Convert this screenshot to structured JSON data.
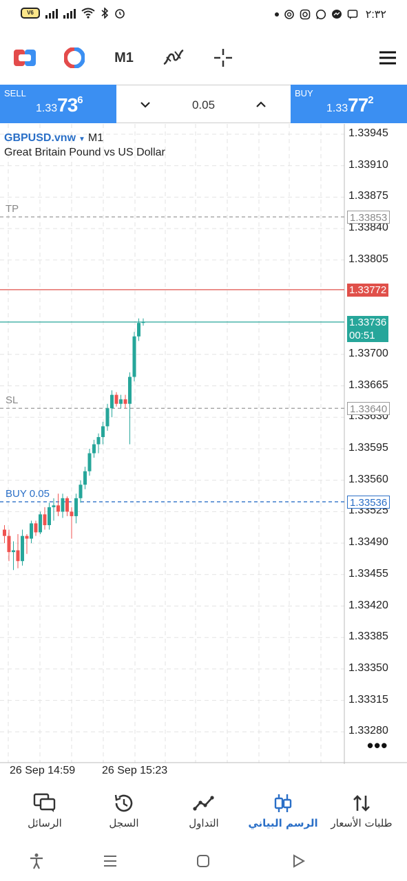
{
  "status_bar": {
    "battery_text": "V6",
    "time": "٢:٣٢"
  },
  "toolbar": {
    "timeframe": "M1"
  },
  "trade_panel": {
    "sell": {
      "label": "SELL",
      "price_main": "1.33",
      "price_big": "73",
      "price_sup": "6"
    },
    "buy": {
      "label": "BUY",
      "price_main": "1.33",
      "price_big": "77",
      "price_sup": "2"
    },
    "volume": "0.05"
  },
  "chart": {
    "symbol": "GBPUSD.vnw",
    "timeframe": "M1",
    "description": "Great Britain Pound vs US Dollar",
    "price_ticks": [
      "1.33945",
      "1.33910",
      "1.33875",
      "1.33840",
      "1.33805",
      "1.33700",
      "1.33665",
      "1.33630",
      "1.33595",
      "1.33560",
      "1.33525",
      "1.33490",
      "1.33455",
      "1.33420",
      "1.33385",
      "1.33350",
      "1.33315",
      "1.33280"
    ],
    "tp": {
      "label": "TP",
      "value": "1.33853"
    },
    "sl": {
      "label": "SL",
      "value": "1.33640"
    },
    "position": {
      "label": "BUY 0.05",
      "value": "1.33536"
    },
    "ask_value": "1.33772",
    "bid_value": "1.33736",
    "countdown": "00:51",
    "time_labels": [
      "26 Sep 14:59",
      "26 Sep 15:23"
    ],
    "colors": {
      "up": "#26a69a",
      "down": "#ef5350",
      "ask_line": "#e0504a",
      "bid_line": "#26a69a",
      "position_line": "#2a6fc7",
      "tp_sl_line": "#999999"
    }
  },
  "chart_data": {
    "type": "candlestick",
    "symbol": "GBPUSD.vnw",
    "timeframe": "M1",
    "y_ticks": [
      1.33945,
      1.3391,
      1.33875,
      1.3384,
      1.33805,
      1.337,
      1.33665,
      1.3363,
      1.33595,
      1.3356,
      1.33525,
      1.3349,
      1.33455,
      1.3342,
      1.33385,
      1.3335,
      1.33315,
      1.3328
    ],
    "ylim": [
      1.33265,
      1.3396
    ],
    "candles": [
      {
        "o": 1.33505,
        "h": 1.3351,
        "l": 1.3349,
        "c": 1.33498
      },
      {
        "o": 1.33498,
        "h": 1.33505,
        "l": 1.3347,
        "c": 1.3348
      },
      {
        "o": 1.3348,
        "h": 1.33492,
        "l": 1.3346,
        "c": 1.33482
      },
      {
        "o": 1.33482,
        "h": 1.335,
        "l": 1.33462,
        "c": 1.3347
      },
      {
        "o": 1.3347,
        "h": 1.33505,
        "l": 1.33465,
        "c": 1.33498
      },
      {
        "o": 1.33498,
        "h": 1.335,
        "l": 1.33478,
        "c": 1.33495
      },
      {
        "o": 1.33495,
        "h": 1.33515,
        "l": 1.3349,
        "c": 1.33512
      },
      {
        "o": 1.33512,
        "h": 1.33515,
        "l": 1.33498,
        "c": 1.33502
      },
      {
        "o": 1.33502,
        "h": 1.33525,
        "l": 1.335,
        "c": 1.33522
      },
      {
        "o": 1.33522,
        "h": 1.3353,
        "l": 1.33505,
        "c": 1.3351
      },
      {
        "o": 1.3351,
        "h": 1.33535,
        "l": 1.33505,
        "c": 1.3353
      },
      {
        "o": 1.3353,
        "h": 1.3354,
        "l": 1.33515,
        "c": 1.33532
      },
      {
        "o": 1.33532,
        "h": 1.33545,
        "l": 1.3352,
        "c": 1.33525
      },
      {
        "o": 1.33525,
        "h": 1.33545,
        "l": 1.33518,
        "c": 1.3354
      },
      {
        "o": 1.3354,
        "h": 1.33542,
        "l": 1.3352,
        "c": 1.33525
      },
      {
        "o": 1.33525,
        "h": 1.3353,
        "l": 1.33495,
        "c": 1.3352
      },
      {
        "o": 1.3352,
        "h": 1.33545,
        "l": 1.33512,
        "c": 1.3354
      },
      {
        "o": 1.3354,
        "h": 1.3356,
        "l": 1.33535,
        "c": 1.33555
      },
      {
        "o": 1.33555,
        "h": 1.33575,
        "l": 1.3355,
        "c": 1.3357
      },
      {
        "o": 1.3357,
        "h": 1.33595,
        "l": 1.33565,
        "c": 1.3359
      },
      {
        "o": 1.3359,
        "h": 1.33605,
        "l": 1.33585,
        "c": 1.336
      },
      {
        "o": 1.336,
        "h": 1.33612,
        "l": 1.3359,
        "c": 1.33608
      },
      {
        "o": 1.33608,
        "h": 1.33625,
        "l": 1.336,
        "c": 1.3362
      },
      {
        "o": 1.3362,
        "h": 1.33645,
        "l": 1.33615,
        "c": 1.3364
      },
      {
        "o": 1.3364,
        "h": 1.3366,
        "l": 1.3363,
        "c": 1.33655
      },
      {
        "o": 1.33655,
        "h": 1.33658,
        "l": 1.33642,
        "c": 1.33645
      },
      {
        "o": 1.33645,
        "h": 1.33655,
        "l": 1.3364,
        "c": 1.3365
      },
      {
        "o": 1.3365,
        "h": 1.33655,
        "l": 1.3364,
        "c": 1.33645
      },
      {
        "o": 1.33645,
        "h": 1.3368,
        "l": 1.336,
        "c": 1.33675
      },
      {
        "o": 1.33675,
        "h": 1.33725,
        "l": 1.3367,
        "c": 1.3372
      },
      {
        "o": 1.3372,
        "h": 1.3374,
        "l": 1.33715,
        "c": 1.33735
      },
      {
        "o": 1.33735,
        "h": 1.3374,
        "l": 1.33732,
        "c": 1.33736
      }
    ],
    "horizontal_lines": [
      {
        "name": "TP",
        "value": 1.33853
      },
      {
        "name": "SL",
        "value": 1.3364
      },
      {
        "name": "BUY 0.05",
        "value": 1.33536
      },
      {
        "name": "Ask",
        "value": 1.33772
      },
      {
        "name": "Bid",
        "value": 1.33736
      }
    ],
    "x_labels": [
      "26 Sep 14:59",
      "26 Sep 15:23"
    ],
    "grid": true
  },
  "bottom_nav": {
    "items": [
      {
        "label": "الرسائل"
      },
      {
        "label": "السجل"
      },
      {
        "label": "التداول"
      },
      {
        "label": "الرسم البياني"
      },
      {
        "label": "طلبات الأسعار"
      }
    ]
  }
}
